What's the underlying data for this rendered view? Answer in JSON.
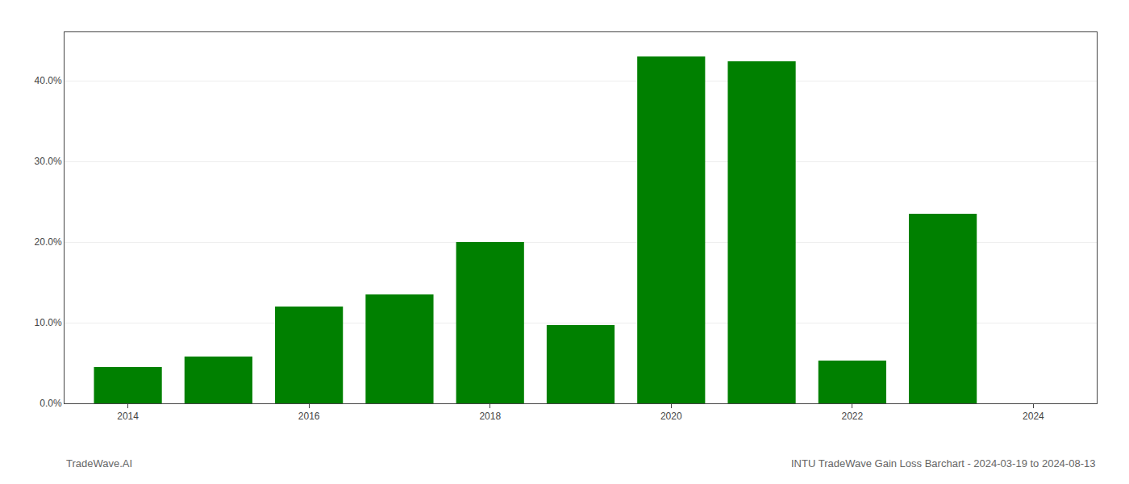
{
  "chart_data": {
    "type": "bar",
    "x": [
      2014,
      2015,
      2016,
      2017,
      2018,
      2019,
      2020,
      2021,
      2022,
      2023
    ],
    "values": [
      0.045,
      0.058,
      0.12,
      0.135,
      0.2,
      0.097,
      0.43,
      0.424,
      0.053,
      0.235
    ],
    "color": "#008000",
    "xlim": [
      2013.3,
      2024.7
    ],
    "xticks": [
      2014,
      2016,
      2018,
      2020,
      2022,
      2024
    ],
    "ylim": [
      0,
      0.46
    ],
    "yticks": [
      {
        "value": 0.0,
        "label": "0.0%"
      },
      {
        "value": 0.1,
        "label": "10.0%"
      },
      {
        "value": 0.2,
        "label": "20.0%"
      },
      {
        "value": 0.3,
        "label": "30.0%"
      },
      {
        "value": 0.4,
        "label": "40.0%"
      }
    ],
    "grid": true,
    "annotations": [
      "TradeWave.AI",
      "INTU TradeWave Gain Loss Barchart - 2024-03-19 to 2024-08-13"
    ]
  }
}
